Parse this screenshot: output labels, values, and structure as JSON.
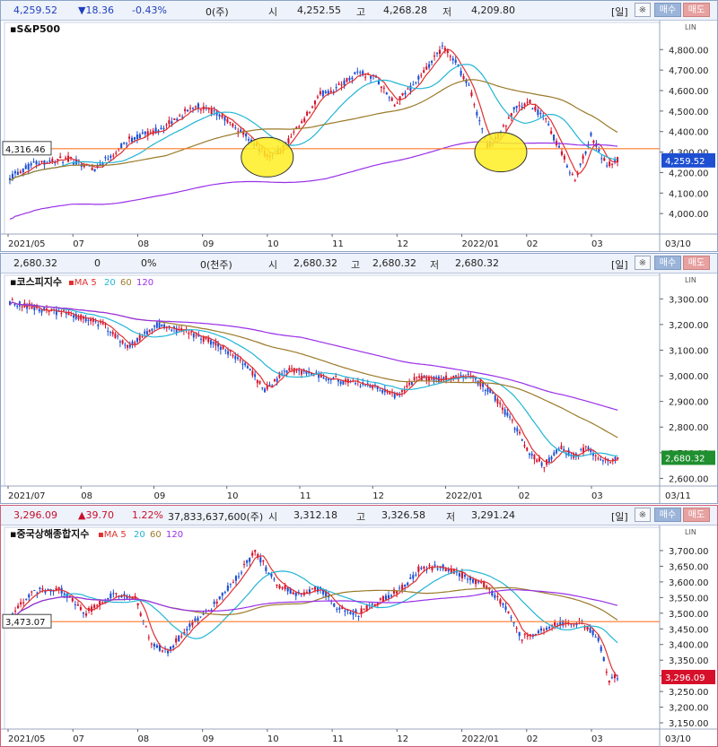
{
  "colors": {
    "up": "#d6102a",
    "down": "#1e4fd2",
    "ma5": "#e03030",
    "ma20": "#22b5d6",
    "ma60": "#9b7a2a",
    "ma120": "#9a2fe8",
    "hline": "#ff7a2a",
    "highlight": "#ffee22"
  },
  "panels": [
    {
      "header": {
        "price": "4,259.52",
        "change": "▼18.36",
        "pct": "-0.43%",
        "volume": "0(주)",
        "open_label": "시",
        "open": "4,252.55",
        "high_label": "고",
        "high": "4,268.28",
        "low_label": "저",
        "low": "4,209.80",
        "price_class": "neg",
        "change_class": "neg"
      },
      "buttons": {
        "period": "[일]",
        "gear": "※",
        "buy": "매수",
        "sell": "매도"
      },
      "title": "S&P500",
      "ma_legend": [],
      "chart_data": {
        "type": "candlestick",
        "title": "S&P500",
        "ylim": [
          3900,
          4880
        ],
        "yticks": [
          4000,
          4100,
          4200,
          4300,
          4400,
          4500,
          4600,
          4700,
          4800
        ],
        "ytick_labels": [
          "4,000.00",
          "4,100.00",
          "4,200.00",
          "4,300.00",
          "4,400.00",
          "4,500.00",
          "4,600.00",
          "4,700.00",
          "4,800.00"
        ],
        "xtick_labels": [
          "2021/05",
          "07",
          "08",
          "09",
          "10",
          "11",
          "12",
          "2022/01",
          "02",
          "03",
          "03/10"
        ],
        "hline": {
          "value": 4316.46,
          "label": "4,316.46"
        },
        "last": {
          "value": 4259.52,
          "label": "4,259.52"
        },
        "highlight_marks": 2,
        "anchors": [
          [
            0,
            4180
          ],
          [
            10,
            4250
          ],
          [
            22,
            4265
          ],
          [
            32,
            4220
          ],
          [
            45,
            4360
          ],
          [
            58,
            4420
          ],
          [
            70,
            4530
          ],
          [
            80,
            4470
          ],
          [
            90,
            4370
          ],
          [
            97,
            4280
          ],
          [
            103,
            4320
          ],
          [
            110,
            4440
          ],
          [
            117,
            4580
          ],
          [
            124,
            4620
          ],
          [
            131,
            4690
          ],
          [
            138,
            4660
          ],
          [
            145,
            4530
          ],
          [
            150,
            4600
          ],
          [
            157,
            4700
          ],
          [
            163,
            4810
          ],
          [
            167,
            4760
          ],
          [
            173,
            4620
          ],
          [
            180,
            4330
          ],
          [
            185,
            4390
          ],
          [
            190,
            4510
          ],
          [
            196,
            4540
          ],
          [
            202,
            4450
          ],
          [
            207,
            4320
          ],
          [
            213,
            4160
          ],
          [
            219,
            4380
          ],
          [
            225,
            4230
          ],
          [
            229,
            4260
          ]
        ],
        "ma_lengths": [
          5,
          20,
          60,
          120
        ],
        "ma_names": [
          "MA 5",
          "20",
          "60",
          "120"
        ],
        "ma_offsets": [
          0,
          -40,
          -120,
          -380
        ]
      }
    },
    {
      "header": {
        "price": "2,680.32",
        "change": "0",
        "pct": "0%",
        "volume": "0(천주)",
        "open_label": "시",
        "open": "2,680.32",
        "high_label": "고",
        "high": "2,680.32",
        "low_label": "저",
        "low": "2,680.32",
        "price_class": "",
        "change_class": ""
      },
      "buttons": {
        "period": "[일]",
        "gear": "※",
        "buy": "매수",
        "sell": "매도"
      },
      "title": "코스피지수",
      "ma_legend": [
        "MA 5",
        "20",
        "60",
        "120"
      ],
      "chart_data": {
        "type": "candlestick",
        "title": "코스피지수",
        "ylim": [
          2570,
          3350
        ],
        "yticks": [
          2600,
          2700,
          2800,
          2900,
          3000,
          3100,
          3200,
          3300
        ],
        "ytick_labels": [
          "2,600.00",
          "2,700.00",
          "2,800.00",
          "2,900.00",
          "3,000.00",
          "3,100.00",
          "3,200.00",
          "3,300.00"
        ],
        "xtick_labels": [
          "2021/07",
          "08",
          "09",
          "10",
          "11",
          "12",
          "2022/01",
          "02",
          "03",
          "03/11"
        ],
        "hline": null,
        "last": {
          "value": 2680.32,
          "label": "2,680.32"
        },
        "highlight_marks": 0,
        "anchors": [
          [
            0,
            3290
          ],
          [
            12,
            3260
          ],
          [
            25,
            3240
          ],
          [
            38,
            3200
          ],
          [
            48,
            3110
          ],
          [
            60,
            3200
          ],
          [
            72,
            3170
          ],
          [
            85,
            3120
          ],
          [
            96,
            3050
          ],
          [
            104,
            2940
          ],
          [
            112,
            3020
          ],
          [
            124,
            3010
          ],
          [
            135,
            2980
          ],
          [
            148,
            2960
          ],
          [
            158,
            2920
          ],
          [
            166,
            2990
          ],
          [
            176,
            2990
          ],
          [
            188,
            3000
          ],
          [
            196,
            2940
          ],
          [
            205,
            2820
          ],
          [
            212,
            2700
          ],
          [
            218,
            2650
          ],
          [
            224,
            2720
          ],
          [
            230,
            2690
          ],
          [
            236,
            2720
          ],
          [
            242,
            2660
          ],
          [
            248,
            2680
          ]
        ],
        "ma_lengths": [
          5,
          20,
          60,
          120
        ],
        "ma_names": [
          "MA 5",
          "20",
          "60",
          "120"
        ],
        "ma_offsets": [
          0,
          0,
          0,
          0
        ]
      }
    },
    {
      "header": {
        "price": "3,296.09",
        "change": "▲39.70",
        "pct": "1.22%",
        "volume": "37,833,637,600(주)",
        "open_label": "시",
        "open": "3,312.18",
        "high_label": "고",
        "high": "3,326.58",
        "low_label": "저",
        "low": "3,291.24",
        "price_class": "pos",
        "change_class": "pos"
      },
      "buttons": {
        "period": "[일]",
        "gear": "※",
        "buy": "매수",
        "sell": "매도"
      },
      "title": "중국상해종합지수",
      "ma_legend": [
        "MA 5",
        "20",
        "60",
        "120"
      ],
      "chart_data": {
        "type": "candlestick",
        "title": "중국상해종합지수",
        "ylim": [
          3130,
          3740
        ],
        "yticks": [
          3150,
          3200,
          3250,
          3300,
          3350,
          3400,
          3450,
          3500,
          3550,
          3600,
          3650,
          3700
        ],
        "ytick_labels": [
          "3,150.00",
          "3,200.00",
          "3,250.00",
          "3,300.00",
          "3,350.00",
          "3,400.00",
          "3,450.00",
          "3,500.00",
          "3,550.00",
          "3,600.00",
          "3,650.00",
          "3,700.00"
        ],
        "xtick_labels": [
          "2021/05",
          "07",
          "08",
          "09",
          "10",
          "11",
          "12",
          "2022/01",
          "02",
          "03",
          "03/10"
        ],
        "hline": {
          "value": 3473.07,
          "label": "3,473.07"
        },
        "last": {
          "value": 3296.09,
          "label": "3,296.09"
        },
        "highlight_marks": 0,
        "anchors": [
          [
            0,
            3480
          ],
          [
            8,
            3570
          ],
          [
            18,
            3580
          ],
          [
            28,
            3500
          ],
          [
            38,
            3560
          ],
          [
            46,
            3550
          ],
          [
            52,
            3400
          ],
          [
            58,
            3380
          ],
          [
            66,
            3460
          ],
          [
            74,
            3520
          ],
          [
            82,
            3600
          ],
          [
            90,
            3700
          ],
          [
            98,
            3590
          ],
          [
            106,
            3560
          ],
          [
            114,
            3580
          ],
          [
            120,
            3520
          ],
          [
            128,
            3500
          ],
          [
            136,
            3540
          ],
          [
            144,
            3580
          ],
          [
            150,
            3640
          ],
          [
            158,
            3650
          ],
          [
            166,
            3620
          ],
          [
            174,
            3590
          ],
          [
            182,
            3520
          ],
          [
            188,
            3420
          ],
          [
            194,
            3440
          ],
          [
            202,
            3470
          ],
          [
            210,
            3470
          ],
          [
            216,
            3420
          ],
          [
            220,
            3280
          ],
          [
            223,
            3300
          ]
        ],
        "ma_lengths": [
          5,
          20,
          60,
          120
        ],
        "ma_names": [
          "MA 5",
          "20",
          "60",
          "120"
        ],
        "ma_offsets": [
          0,
          0,
          0,
          0
        ]
      }
    }
  ]
}
